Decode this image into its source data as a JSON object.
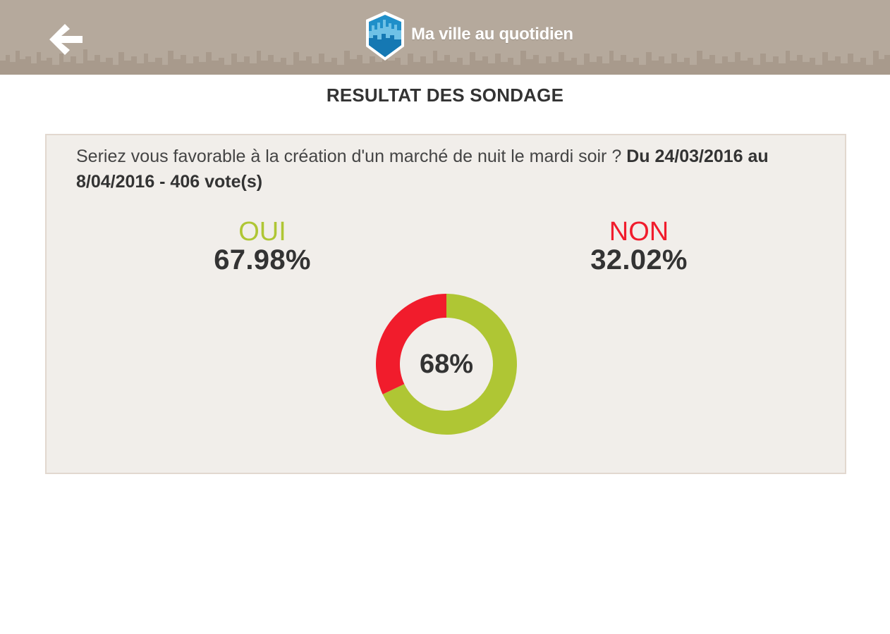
{
  "header": {
    "app_title": "Ma ville au quotidien",
    "back_icon": "arrow-left-icon",
    "logo_icon": "city-shield-logo"
  },
  "page": {
    "title": "RESULTAT DES SONDAGE"
  },
  "poll": {
    "question": "Seriez vous favorable à la création d'un marché de nuit le mardi soir ? ",
    "dates": "Du 24/03/2016 au 8/04/2016 - 406 vote(s)",
    "options": [
      {
        "label": "OUI",
        "percent": "67.98%",
        "value": 67.98,
        "color": "#afc634"
      },
      {
        "label": "NON",
        "percent": "32.02%",
        "value": 32.02,
        "color": "#f11c2c"
      }
    ],
    "donut_center": "68%"
  },
  "chart_data": {
    "type": "pie",
    "categories": [
      "OUI",
      "NON"
    ],
    "values": [
      67.98,
      32.02
    ],
    "colors": [
      "#afc634",
      "#f11c2c"
    ],
    "center_label": "68%"
  }
}
